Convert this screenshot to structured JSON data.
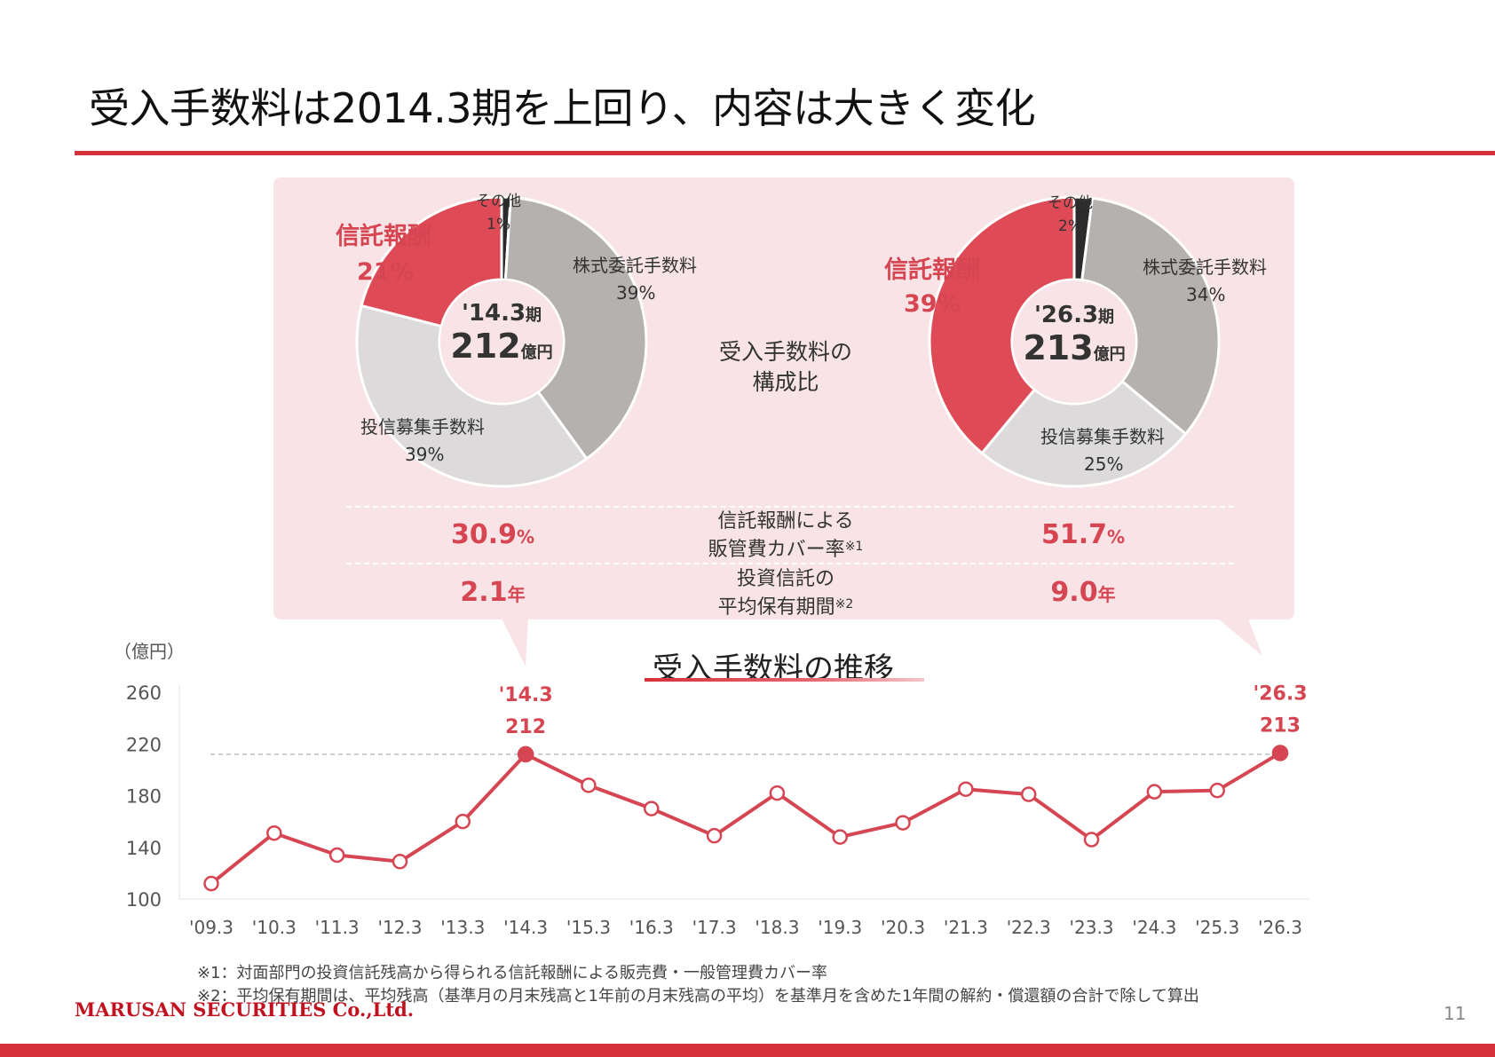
{
  "title": "受入手数料は2014.3期を上回り、内容は大きく変化",
  "colors": {
    "accent": "#d6303a",
    "trust_fee": "#de4b56",
    "stock_commission": "#b5b1af",
    "fund_sales": "#dcdada",
    "other": "#2b2b2b",
    "line": "#d64652"
  },
  "composition_label": [
    "受入手数料の",
    "構成比"
  ],
  "donuts": [
    {
      "period": "'14.3",
      "period_suffix": "期",
      "amount": "212",
      "amount_unit": "億円",
      "segments": [
        {
          "name": "その他",
          "pct_label": "1%",
          "value": 1
        },
        {
          "name": "株式委託手数料",
          "pct_label": "39%",
          "value": 39
        },
        {
          "name": "投信募集手数料",
          "pct_label": "39%",
          "value": 39
        },
        {
          "name": "信託報酬",
          "pct_label": "21%",
          "value": 21
        }
      ]
    },
    {
      "period": "'26.3",
      "period_suffix": "期",
      "amount": "213",
      "amount_unit": "億円",
      "segments": [
        {
          "name": "その他",
          "pct_label": "2%",
          "value": 2
        },
        {
          "name": "株式委託手数料",
          "pct_label": "34%",
          "value": 34
        },
        {
          "name": "投信募集手数料",
          "pct_label": "25%",
          "value": 25
        },
        {
          "name": "信託報酬",
          "pct_label": "39%",
          "value": 39
        }
      ]
    }
  ],
  "metrics": [
    {
      "label_line1": "信託報酬による",
      "label_line2": "販管費カバー率",
      "note_mark": "※1",
      "left_value": "30.9",
      "left_unit": "%",
      "right_value": "51.7",
      "right_unit": "%"
    },
    {
      "label_line1": "投資信託の",
      "label_line2": "平均保有期間",
      "note_mark": "※2",
      "left_value": "2.1",
      "left_unit": "年",
      "right_value": "9.0",
      "right_unit": "年"
    }
  ],
  "chart_data": {
    "type": "line",
    "title": "受入手数料の推移",
    "ylabel": "（億円）",
    "categories": [
      "'09.3",
      "'10.3",
      "'11.3",
      "'12.3",
      "'13.3",
      "'14.3",
      "'15.3",
      "'16.3",
      "'17.3",
      "'18.3",
      "'19.3",
      "'20.3",
      "'21.3",
      "'22.3",
      "'23.3",
      "'24.3",
      "'25.3",
      "'26.3"
    ],
    "values": [
      112,
      151,
      134,
      129,
      160,
      212,
      188,
      170,
      149,
      182,
      148,
      159,
      185,
      181,
      146,
      183,
      184,
      213
    ],
    "ylim": [
      100,
      260
    ],
    "yticks": [
      100,
      140,
      180,
      220,
      260
    ],
    "reference_line": 212,
    "annotations": [
      {
        "category": "'14.3",
        "line1": "'14.3",
        "line2": "212"
      },
      {
        "category": "'26.3",
        "line1": "'26.3",
        "line2": "213"
      }
    ],
    "grid": false
  },
  "footnotes": [
    "※1：対面部門の投資信託残高から得られる信託報酬による販売費・一般管理費カバー率",
    "※2：平均保有期間は、平均残高（基準月の月末残高と1年前の月末残高の平均）を基準月を含めた1年間の解約・償還額の合計で除して算出"
  ],
  "company": "MARUSAN SECURITIES Co.,Ltd.",
  "page_number": "11"
}
